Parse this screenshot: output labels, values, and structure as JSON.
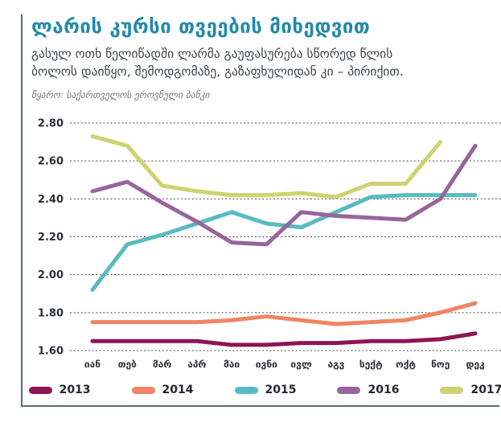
{
  "header": {
    "title": "ლარის კურსი თვეების მიხედვით",
    "subtitle": "გასულ ოთხ წელიწადში ლარმა გაუფასურება სწორედ წლის ბოლოს დაიწყო, შემოდგომაზე, გაზაფხულიდან კი – პირიქით.",
    "source": "წყარო: საქართველოს ეროვნული ბანკი"
  },
  "colors": {
    "title": "#2289aa",
    "frame_border": "#5a6a76",
    "axis_text": "#2b2f36",
    "gridline": "#2a2a2a"
  },
  "chart_data": {
    "type": "line",
    "title": "ლარის კურსი თვეების მიხედვით",
    "xlabel": "",
    "ylabel": "",
    "categories": [
      "იან",
      "თებ",
      "მარ",
      "აპრ",
      "მაი",
      "ივნი",
      "ივლ",
      "აგვ",
      "სექტ",
      "ოქტ",
      "ნოე",
      "დეკ"
    ],
    "y_ticks": [
      "2.80",
      "2.60",
      "2.40",
      "2.20",
      "2.00",
      "1.80",
      "1.60"
    ],
    "ylim": [
      1.6,
      2.8
    ],
    "grid": "horizontal-dotted",
    "legend_position": "bottom",
    "series": [
      {
        "name": "2013",
        "color": "#8e1453",
        "values": [
          1.65,
          1.65,
          1.65,
          1.65,
          1.63,
          1.63,
          1.64,
          1.64,
          1.65,
          1.65,
          1.66,
          1.69
        ]
      },
      {
        "name": "2014",
        "color": "#ef8564",
        "values": [
          1.75,
          1.75,
          1.75,
          1.75,
          1.76,
          1.78,
          1.76,
          1.74,
          1.75,
          1.76,
          1.8,
          1.85
        ]
      },
      {
        "name": "2015",
        "color": "#58bac4",
        "values": [
          1.92,
          2.16,
          2.21,
          2.27,
          2.33,
          2.27,
          2.25,
          2.33,
          2.41,
          2.42,
          2.42,
          2.42
        ]
      },
      {
        "name": "2016",
        "color": "#97659c",
        "values": [
          2.44,
          2.49,
          2.38,
          2.28,
          2.17,
          2.16,
          2.33,
          2.31,
          2.3,
          2.29,
          2.4,
          2.68
        ]
      },
      {
        "name": "2017",
        "color": "#cdd36e",
        "values": [
          2.73,
          2.68,
          2.47,
          2.44,
          2.42,
          2.42,
          2.43,
          2.41,
          2.48,
          2.48,
          2.7,
          null
        ]
      }
    ]
  }
}
